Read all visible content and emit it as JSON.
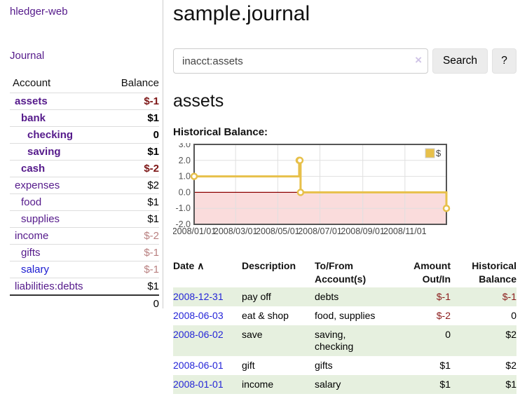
{
  "app": {
    "brand": "hledger-web"
  },
  "sidebar": {
    "nav_journal": "Journal",
    "accounts_table": {
      "headers": [
        "Account",
        "Balance"
      ],
      "rows": [
        {
          "name": "assets",
          "indent": 0,
          "balance": "$-1",
          "bold": true,
          "negative": true,
          "blue": false
        },
        {
          "name": "bank",
          "indent": 1,
          "balance": "$1",
          "bold": true,
          "negative": false,
          "blue": false
        },
        {
          "name": "checking",
          "indent": 2,
          "balance": "0",
          "bold": true,
          "negative": false,
          "blue": false
        },
        {
          "name": "saving",
          "indent": 2,
          "balance": "$1",
          "bold": true,
          "negative": false,
          "blue": false
        },
        {
          "name": "cash",
          "indent": 1,
          "balance": "$-2",
          "bold": true,
          "negative": true,
          "blue": false
        },
        {
          "name": "expenses",
          "indent": 0,
          "balance": "$2",
          "bold": false,
          "negative": false,
          "blue": false
        },
        {
          "name": "food",
          "indent": 1,
          "balance": "$1",
          "bold": false,
          "negative": false,
          "blue": false
        },
        {
          "name": "supplies",
          "indent": 1,
          "balance": "$1",
          "bold": false,
          "negative": false,
          "blue": false
        },
        {
          "name": "income",
          "indent": 0,
          "balance": "$-2",
          "bold": false,
          "negative": true,
          "blue": false
        },
        {
          "name": "gifts",
          "indent": 1,
          "balance": "$-1",
          "bold": false,
          "negative": true,
          "blue": false
        },
        {
          "name": "salary",
          "indent": 1,
          "balance": "$-1",
          "bold": false,
          "negative": true,
          "blue": true
        },
        {
          "name": "liabilities:debts",
          "indent": 0,
          "balance": "$1",
          "bold": false,
          "negative": false,
          "blue": false
        }
      ],
      "total": "0"
    }
  },
  "header": {
    "title": "sample.journal"
  },
  "search": {
    "value": "inacct:assets",
    "clear_icon": "×",
    "button": "Search",
    "help_button": "?"
  },
  "account_page": {
    "heading": "assets",
    "chart_label": "Historical Balance:"
  },
  "chart_data": {
    "type": "line",
    "step": true,
    "title": "Historical Balance",
    "legend": "$",
    "legend_position": "top-right",
    "grid": true,
    "series": [
      {
        "name": "$",
        "color": "#e7c04a",
        "points": [
          [
            "2008-01-01",
            1
          ],
          [
            "2008-06-01",
            2
          ],
          [
            "2008-06-02",
            2
          ],
          [
            "2008-06-03",
            0
          ],
          [
            "2008-12-31",
            -1
          ]
        ]
      }
    ],
    "x_start": "2008-01-01",
    "x_end": "2008-12-31",
    "x_ticks": [
      "2008/01/01",
      "2008/03/01",
      "2008/05/01",
      "2008/07/01",
      "2008/09/01",
      "2008/11/01"
    ],
    "y_ticks": [
      3.0,
      2.0,
      1.0,
      0.0,
      -1.0,
      -2.0
    ],
    "ylim": [
      -2,
      3
    ],
    "negative_region_color": "#fadcdc",
    "zero_line_color": "#8b0000",
    "gridline_color": "#e0e0e0",
    "border_color": "#555555"
  },
  "register": {
    "headers": [
      {
        "line1": "Date",
        "sort": "∧"
      },
      {
        "line1": "Description"
      },
      {
        "line1": "To/From",
        "line2": "Account(s)"
      },
      {
        "line1": "Amount",
        "line2": "Out/In"
      },
      {
        "line1": "Historical",
        "line2": "Balance"
      }
    ],
    "rows": [
      {
        "date": "2008-12-31",
        "description": "pay off",
        "accounts": "debts",
        "amount": "$-1",
        "amount_negative": true,
        "balance": "$-1",
        "balance_negative": true
      },
      {
        "date": "2008-06-03",
        "description": "eat & shop",
        "accounts": "food, supplies",
        "amount": "$-2",
        "amount_negative": true,
        "balance": "0",
        "balance_negative": false
      },
      {
        "date": "2008-06-02",
        "description": "save",
        "accounts": "saving, checking",
        "amount": "0",
        "amount_negative": false,
        "balance": "$2",
        "balance_negative": false
      },
      {
        "date": "2008-06-01",
        "description": "gift",
        "accounts": "gifts",
        "amount": "$1",
        "amount_negative": false,
        "balance": "$2",
        "balance_negative": false
      },
      {
        "date": "2008-01-01",
        "description": "income",
        "accounts": "salary",
        "amount": "$1",
        "amount_negative": false,
        "balance": "$1",
        "balance_negative": false
      }
    ]
  },
  "colors": {
    "accent_purple": "#551a8b",
    "link_blue": "#2424d8",
    "negative_dark": "#7d1616",
    "negative_light": "#b98080",
    "table_negative": "#8b1c1c",
    "row_green": "#e6f0df"
  }
}
